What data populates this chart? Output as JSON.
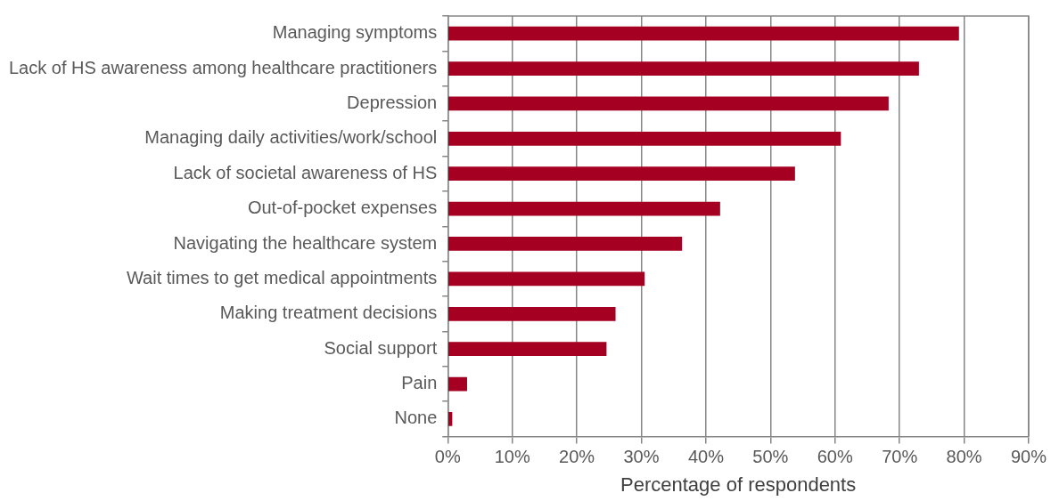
{
  "chart_data": {
    "type": "bar",
    "orientation": "horizontal",
    "xlabel": "Percentage of respondents",
    "categories": [
      "Managing symptoms",
      "Lack of HS awareness among healthcare practitioners",
      "Depression",
      "Managing daily activities/work/school",
      "Lack of societal awareness of HS",
      "Out-of-pocket expenses",
      "Navigating the healthcare system",
      "Wait times to get medical appointments",
      "Making treatment decisions",
      "Social support",
      "Pain",
      "None"
    ],
    "values": [
      79.2,
      73.0,
      68.3,
      60.9,
      53.8,
      42.2,
      36.3,
      30.5,
      26.0,
      24.6,
      3.0,
      0.7
    ],
    "color": "#a50021",
    "xlim": [
      0,
      90
    ],
    "xticks": [
      {
        "value": 0,
        "label": "0%"
      },
      {
        "value": 10,
        "label": "10%"
      },
      {
        "value": 20,
        "label": "20%"
      },
      {
        "value": 30,
        "label": "30%"
      },
      {
        "value": 40,
        "label": "40%"
      },
      {
        "value": 50,
        "label": "50%"
      },
      {
        "value": 60,
        "label": "60%"
      },
      {
        "value": 70,
        "label": "70%"
      },
      {
        "value": 80,
        "label": "80%"
      },
      {
        "value": 90,
        "label": "90%"
      }
    ],
    "grid": "x"
  }
}
